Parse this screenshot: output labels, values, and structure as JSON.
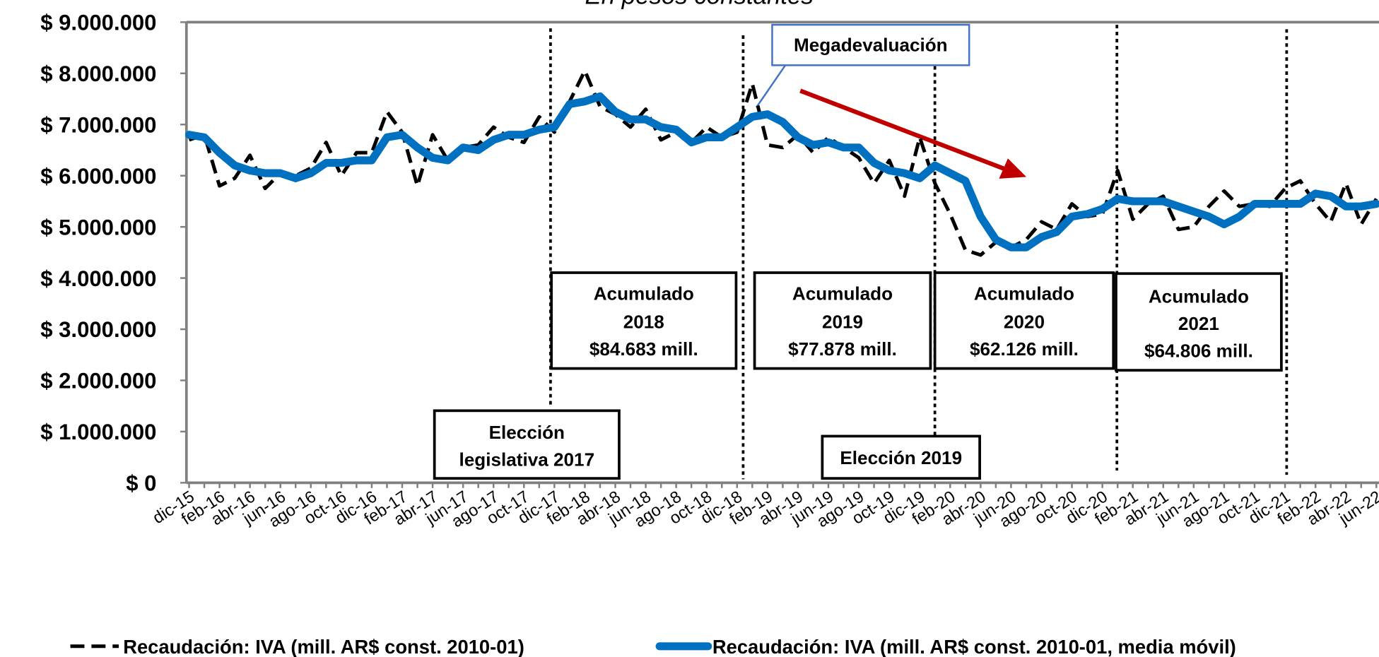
{
  "chart_data": {
    "type": "line",
    "title": "En pesos constantes",
    "categories": [
      "dic-15",
      null,
      "feb-16",
      null,
      "abr-16",
      null,
      "jun-16",
      null,
      "ago-16",
      null,
      "oct-16",
      null,
      "dic-16",
      null,
      "feb-17",
      null,
      "abr-17",
      null,
      "jun-17",
      null,
      "ago-17",
      null,
      "oct-17",
      null,
      "dic-17",
      null,
      "feb-18",
      null,
      "abr-18",
      null,
      "jun-18",
      null,
      "ago-18",
      null,
      "oct-18",
      null,
      "dic-18",
      null,
      "feb-19",
      null,
      "abr-19",
      null,
      "jun-19",
      null,
      "ago-19",
      null,
      "oct-19",
      null,
      "dic-19",
      null,
      "feb-20",
      null,
      "abr-20",
      null,
      "jun-20",
      null,
      "ago-20",
      null,
      "oct-20",
      null,
      "dic-20",
      null,
      "feb-21",
      null,
      "abr-21",
      null,
      "jun-21",
      null,
      "ago-21",
      null,
      "oct-21",
      null,
      "dic-21",
      null,
      "feb-22",
      null,
      "abr-22",
      null,
      "jun-22"
    ],
    "series": [
      {
        "name": "Recaudación: IVA (mill. AR$ const. 2010-01)",
        "color": "#000000",
        "dashed": true,
        "values": [
          6700000,
          6800000,
          5800000,
          5950000,
          6400000,
          5750000,
          6050000,
          6000000,
          6150000,
          6650000,
          6000000,
          6450000,
          6450000,
          7250000,
          6850000,
          5800000,
          6800000,
          6300000,
          6550000,
          6600000,
          6950000,
          6750000,
          6650000,
          7150000,
          6850000,
          7450000,
          8050000,
          7350000,
          7200000,
          6950000,
          7300000,
          6700000,
          6850000,
          6650000,
          6950000,
          6750000,
          6850000,
          7800000,
          6600000,
          6550000,
          6800000,
          6450000,
          6750000,
          6550000,
          6350000,
          5850000,
          6300000,
          5600000,
          6750000,
          5850000,
          5250000,
          4550000,
          4450000,
          4700000,
          4600000,
          4750000,
          5100000,
          4950000,
          5450000,
          5200000,
          5250000,
          6100000,
          5150000,
          5450000,
          5600000,
          4950000,
          5000000,
          5400000,
          5700000,
          5400000,
          5450000,
          5400000,
          5750000,
          5900000,
          5450000,
          5100000,
          5850000,
          5050000,
          5550000
        ]
      },
      {
        "name": "Recaudación: IVA (mill. AR$ const. 2010-01, media móvil)",
        "color": "#0070c0",
        "dashed": false,
        "values": [
          6800000,
          6750000,
          6450000,
          6200000,
          6100000,
          6050000,
          6050000,
          5950000,
          6050000,
          6250000,
          6250000,
          6300000,
          6300000,
          6750000,
          6800000,
          6550000,
          6350000,
          6300000,
          6550000,
          6500000,
          6700000,
          6800000,
          6800000,
          6900000,
          6950000,
          7400000,
          7450000,
          7550000,
          7250000,
          7100000,
          7100000,
          6950000,
          6900000,
          6650000,
          6750000,
          6750000,
          6950000,
          7150000,
          7200000,
          7050000,
          6750000,
          6600000,
          6650000,
          6550000,
          6550000,
          6250000,
          6100000,
          6050000,
          5950000,
          6200000,
          6050000,
          5900000,
          5200000,
          4750000,
          4600000,
          4600000,
          4800000,
          4900000,
          5200000,
          5250000,
          5350000,
          5550000,
          5500000,
          5500000,
          5500000,
          5400000,
          5300000,
          5200000,
          5050000,
          5200000,
          5450000,
          5450000,
          5450000,
          5450000,
          5650000,
          5600000,
          5400000,
          5400000,
          5450000
        ]
      }
    ],
    "ylim": [
      0,
      9000000
    ],
    "yticks": [
      {
        "value": 0,
        "label": "$ 0"
      },
      {
        "value": 1000000,
        "label": "$ 1.000.000"
      },
      {
        "value": 2000000,
        "label": "$ 2.000.000"
      },
      {
        "value": 3000000,
        "label": "$ 3.000.000"
      },
      {
        "value": 4000000,
        "label": "$ 4.000.000"
      },
      {
        "value": 5000000,
        "label": "$ 5.000.000"
      },
      {
        "value": 6000000,
        "label": "$ 6.000.000"
      },
      {
        "value": 7000000,
        "label": "$ 7.000.000"
      },
      {
        "value": 8000000,
        "label": "$ 8.000.000"
      },
      {
        "value": 9000000,
        "label": "$ 9.000.000"
      }
    ],
    "grid": false,
    "legend": "bottom",
    "annotations": [
      {
        "lines": [
          "Megadevaluación"
        ]
      },
      {
        "lines": [
          "Acumulado",
          "2018",
          "$84.683 mill."
        ]
      },
      {
        "lines": [
          "Acumulado",
          "2019",
          "$77.878 mill."
        ]
      },
      {
        "lines": [
          "Acumulado",
          "2020",
          "$62.126 mill."
        ]
      },
      {
        "lines": [
          "Acumulado",
          "2021",
          "$64.806 mill."
        ]
      },
      {
        "lines": [
          "Elección",
          "legislativa 2017"
        ]
      },
      {
        "lines": [
          "Elección 2019"
        ]
      }
    ]
  }
}
